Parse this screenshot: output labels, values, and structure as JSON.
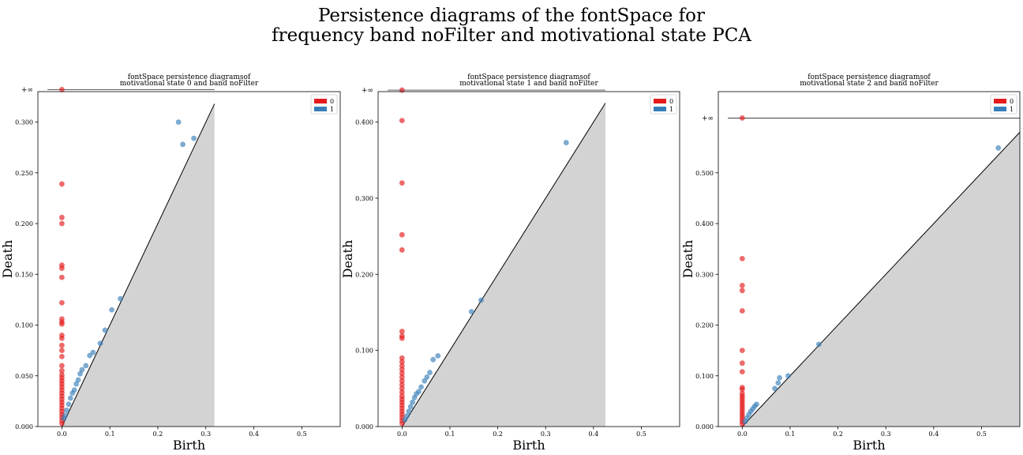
{
  "figure": {
    "title_line1": "Persistence diagrams of the fontSpace for",
    "title_line2": "frequency band noFilter and motivational state PCA"
  },
  "colors": {
    "h0": "#e41a1c",
    "h1": "#377eb8",
    "diagonal_fill": "#d3d3d3"
  },
  "chart_data": [
    {
      "type": "scatter",
      "title_line1": "fontSpace persistence diagramsof",
      "title_line2": "motivational state 0 and band noFilter",
      "xlabel": "Birth",
      "ylabel": "Death",
      "xlim": [
        -0.05,
        0.58
      ],
      "ylim": [
        0.0,
        0.33
      ],
      "infinity_label": "+∞",
      "infinity_value": 0.332,
      "diagonal_max": 0.318,
      "xticks": [
        "0.0",
        "0.1",
        "0.2",
        "0.3",
        "0.4",
        "0.5"
      ],
      "yticks": [
        "0.000",
        "0.050",
        "0.100",
        "0.150",
        "0.200",
        "0.250",
        "0.300"
      ],
      "legend": [
        "0",
        "1"
      ],
      "series": [
        {
          "name": "0",
          "x": 0.0,
          "y": [
            0.332,
            0.239,
            0.206,
            0.2,
            0.159,
            0.156,
            0.147,
            0.122,
            0.106,
            0.103,
            0.101,
            0.09,
            0.087,
            0.08,
            0.075,
            0.069,
            0.06,
            0.055,
            0.051,
            0.048,
            0.045,
            0.042,
            0.039,
            0.036,
            0.033,
            0.03,
            0.027,
            0.024,
            0.021,
            0.018,
            0.015,
            0.012,
            0.009,
            0.006,
            0.003
          ]
        },
        {
          "name": "1",
          "points": [
            [
              0.243,
              0.3
            ],
            [
              0.252,
              0.278
            ],
            [
              0.275,
              0.284
            ],
            [
              0.122,
              0.126
            ],
            [
              0.104,
              0.115
            ],
            [
              0.08,
              0.082
            ],
            [
              0.065,
              0.073
            ],
            [
              0.058,
              0.07
            ],
            [
              0.05,
              0.06
            ],
            [
              0.042,
              0.056
            ],
            [
              0.038,
              0.052
            ],
            [
              0.034,
              0.046
            ],
            [
              0.03,
              0.042
            ],
            [
              0.026,
              0.036
            ],
            [
              0.022,
              0.033
            ],
            [
              0.018,
              0.028
            ],
            [
              0.014,
              0.022
            ],
            [
              0.01,
              0.016
            ],
            [
              0.007,
              0.011
            ],
            [
              0.004,
              0.008
            ],
            [
              0.09,
              0.095
            ]
          ]
        }
      ]
    },
    {
      "type": "scatter",
      "title_line1": "fontSpace persistence diagramsof",
      "title_line2": "motivational state 1 and band noFilter",
      "xlabel": "Birth",
      "ylabel": "Death",
      "xlim": [
        -0.05,
        0.58
      ],
      "ylim": [
        0.0,
        0.44
      ],
      "infinity_label": "+∞",
      "infinity_value": 0.442,
      "diagonal_max": 0.425,
      "xticks": [
        "0.0",
        "0.1",
        "0.2",
        "0.3",
        "0.4",
        "0.5"
      ],
      "yticks": [
        "0.000",
        "0.100",
        "0.200",
        "0.300",
        "0.400"
      ],
      "legend": [
        "0",
        "1"
      ],
      "series": [
        {
          "name": "0",
          "x": 0.0,
          "y": [
            0.442,
            0.402,
            0.32,
            0.252,
            0.232,
            0.125,
            0.119,
            0.116,
            0.09,
            0.085,
            0.08,
            0.075,
            0.07,
            0.065,
            0.06,
            0.055,
            0.05,
            0.045,
            0.04,
            0.036,
            0.032,
            0.028,
            0.024,
            0.02,
            0.016,
            0.012,
            0.008,
            0.004
          ]
        },
        {
          "name": "1",
          "points": [
            [
              0.343,
              0.373
            ],
            [
              0.145,
              0.151
            ],
            [
              0.165,
              0.166
            ],
            [
              0.075,
              0.093
            ],
            [
              0.065,
              0.088
            ],
            [
              0.058,
              0.071
            ],
            [
              0.052,
              0.065
            ],
            [
              0.047,
              0.06
            ],
            [
              0.04,
              0.052
            ],
            [
              0.035,
              0.046
            ],
            [
              0.03,
              0.043
            ],
            [
              0.026,
              0.038
            ],
            [
              0.022,
              0.032
            ],
            [
              0.018,
              0.026
            ],
            [
              0.014,
              0.02
            ],
            [
              0.01,
              0.014
            ],
            [
              0.006,
              0.009
            ]
          ]
        }
      ]
    },
    {
      "type": "scatter",
      "title_line1": "fontSpace persistence diagramsof",
      "title_line2": "motivational state 2 and band noFilter",
      "xlabel": "Birth",
      "ylabel": "Death",
      "xlim": [
        -0.05,
        0.58
      ],
      "ylim": [
        0.0,
        0.66
      ],
      "infinity_label": "+∞",
      "infinity_value": 0.608,
      "diagonal_max": 0.58,
      "xticks": [
        "0.0",
        "0.1",
        "0.2",
        "0.3",
        "0.4",
        "0.5"
      ],
      "yticks": [
        "0.000",
        "0.100",
        "0.200",
        "0.300",
        "0.400",
        "0.500"
      ],
      "legend": [
        "0",
        "1"
      ],
      "series": [
        {
          "name": "0",
          "x": 0.0,
          "y": [
            0.608,
            0.331,
            0.278,
            0.268,
            0.228,
            0.15,
            0.125,
            0.108,
            0.077,
            0.073,
            0.065,
            0.06,
            0.055,
            0.05,
            0.045,
            0.04,
            0.035,
            0.03,
            0.025,
            0.02,
            0.015,
            0.01,
            0.005
          ]
        },
        {
          "name": "1",
          "points": [
            [
              0.535,
              0.549
            ],
            [
              0.16,
              0.162
            ],
            [
              0.096,
              0.1
            ],
            [
              0.078,
              0.096
            ],
            [
              0.075,
              0.086
            ],
            [
              0.068,
              0.075
            ],
            [
              0.03,
              0.044
            ],
            [
              0.026,
              0.04
            ],
            [
              0.022,
              0.035
            ],
            [
              0.018,
              0.03
            ],
            [
              0.014,
              0.024
            ],
            [
              0.01,
              0.017
            ],
            [
              0.006,
              0.01
            ]
          ]
        }
      ]
    }
  ]
}
